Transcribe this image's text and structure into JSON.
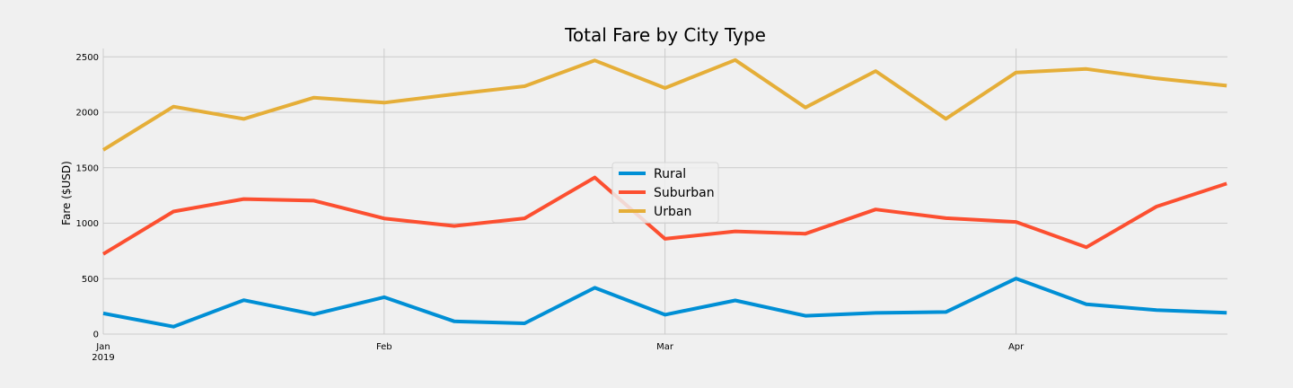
{
  "chart_data": {
    "type": "line",
    "title": "Total Fare by City Type",
    "xlabel": "",
    "ylabel": "Fare ($USD)",
    "ylim": [
      0,
      2575
    ],
    "yticks": [
      0,
      500,
      1000,
      1500,
      2000,
      2500
    ],
    "x_weeks": [
      "2019-01-06",
      "2019-01-13",
      "2019-01-20",
      "2019-01-27",
      "2019-02-03",
      "2019-02-10",
      "2019-02-17",
      "2019-02-24",
      "2019-03-03",
      "2019-03-10",
      "2019-03-17",
      "2019-03-24",
      "2019-03-31",
      "2019-04-07",
      "2019-04-14",
      "2019-04-21",
      "2019-04-28"
    ],
    "xtick_labels": [
      {
        "date": "2019-01-06",
        "label": "Jan",
        "sublabel": "2019"
      },
      {
        "date": "2019-02-03",
        "label": "Feb",
        "sublabel": ""
      },
      {
        "date": "2019-03-03",
        "label": "Mar",
        "sublabel": ""
      },
      {
        "date": "2019-04-07",
        "label": "Apr",
        "sublabel": ""
      }
    ],
    "grid": true,
    "legend_position": "center",
    "series": [
      {
        "name": "Rural",
        "color": "#008fd5",
        "values": [
          187,
          67,
          306,
          179,
          333,
          115,
          97,
          418,
          175,
          304,
          165,
          191,
          199,
          501,
          270,
          216,
          193
        ]
      },
      {
        "name": "Suburban",
        "color": "#fc4f30",
        "values": [
          722,
          1105,
          1218,
          1203,
          1043,
          975,
          1044,
          1412,
          859,
          926,
          905,
          1124,
          1045,
          1011,
          783,
          1150,
          1357
        ]
      },
      {
        "name": "Urban",
        "color": "#e5ae38",
        "values": [
          1661,
          2051,
          1940,
          2132,
          2087,
          2163,
          2235,
          2467,
          2219,
          2471,
          2043,
          2372,
          1941,
          2359,
          2390,
          2305,
          2240
        ]
      }
    ]
  }
}
